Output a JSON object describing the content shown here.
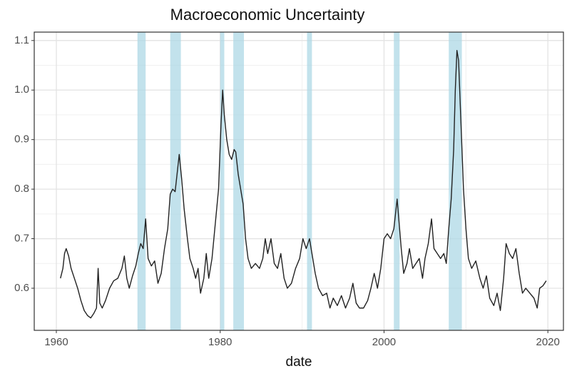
{
  "chart_data": {
    "type": "line",
    "title": "Macroeconomic Uncertainty",
    "x_label": "date",
    "x": [
      1960.5,
      1960.8,
      1961.0,
      1961.2,
      1961.5,
      1961.8,
      1962.2,
      1962.6,
      1963.0,
      1963.4,
      1963.8,
      1964.2,
      1964.6,
      1964.9,
      1965.1,
      1965.3,
      1965.6,
      1966.0,
      1966.5,
      1967.0,
      1967.5,
      1968.0,
      1968.3,
      1968.6,
      1968.9,
      1969.3,
      1969.7,
      1970.0,
      1970.3,
      1970.6,
      1970.9,
      1971.2,
      1971.6,
      1972.0,
      1972.4,
      1972.8,
      1973.2,
      1973.6,
      1973.9,
      1974.2,
      1974.5,
      1974.8,
      1975.0,
      1975.3,
      1975.6,
      1976.0,
      1976.3,
      1976.7,
      1977.0,
      1977.3,
      1977.6,
      1978.0,
      1978.3,
      1978.6,
      1979.0,
      1979.4,
      1979.8,
      1980.1,
      1980.3,
      1980.5,
      1980.8,
      1981.1,
      1981.4,
      1981.7,
      1981.9,
      1982.2,
      1982.5,
      1982.8,
      1983.1,
      1983.4,
      1983.8,
      1984.3,
      1984.8,
      1985.2,
      1985.5,
      1985.8,
      1986.2,
      1986.6,
      1987.0,
      1987.4,
      1987.8,
      1988.2,
      1988.7,
      1989.2,
      1989.7,
      1990.1,
      1990.5,
      1990.9,
      1991.2,
      1991.6,
      1992.0,
      1992.5,
      1993.0,
      1993.4,
      1993.8,
      1994.3,
      1994.8,
      1995.3,
      1995.8,
      1996.2,
      1996.6,
      1997.0,
      1997.5,
      1998.0,
      1998.4,
      1998.8,
      1999.2,
      1999.6,
      2000.0,
      2000.4,
      2000.8,
      2001.2,
      2001.6,
      2001.8,
      2002.1,
      2002.4,
      2002.8,
      2003.1,
      2003.5,
      2003.9,
      2004.3,
      2004.7,
      2005.0,
      2005.4,
      2005.8,
      2006.1,
      2006.5,
      2006.9,
      2007.3,
      2007.6,
      2007.9,
      2008.2,
      2008.5,
      2008.7,
      2008.9,
      2009.1,
      2009.4,
      2009.7,
      2010.0,
      2010.3,
      2010.7,
      2011.2,
      2011.7,
      2012.1,
      2012.5,
      2012.9,
      2013.4,
      2013.8,
      2014.2,
      2014.6,
      2014.9,
      2015.3,
      2015.7,
      2016.1,
      2016.5,
      2016.9,
      2017.3,
      2017.8,
      2018.3,
      2018.7,
      2019.0,
      2019.4,
      2019.8
    ],
    "values": [
      0.62,
      0.64,
      0.67,
      0.68,
      0.665,
      0.64,
      0.62,
      0.6,
      0.575,
      0.555,
      0.545,
      0.54,
      0.55,
      0.56,
      0.64,
      0.57,
      0.56,
      0.575,
      0.6,
      0.615,
      0.62,
      0.64,
      0.665,
      0.62,
      0.6,
      0.625,
      0.645,
      0.67,
      0.69,
      0.68,
      0.74,
      0.66,
      0.645,
      0.655,
      0.61,
      0.63,
      0.68,
      0.72,
      0.79,
      0.8,
      0.795,
      0.84,
      0.87,
      0.82,
      0.76,
      0.7,
      0.66,
      0.64,
      0.62,
      0.64,
      0.59,
      0.62,
      0.67,
      0.62,
      0.66,
      0.73,
      0.8,
      0.93,
      1.0,
      0.95,
      0.9,
      0.87,
      0.86,
      0.88,
      0.875,
      0.83,
      0.8,
      0.77,
      0.7,
      0.66,
      0.64,
      0.65,
      0.64,
      0.66,
      0.7,
      0.67,
      0.7,
      0.65,
      0.64,
      0.67,
      0.62,
      0.6,
      0.61,
      0.64,
      0.66,
      0.7,
      0.68,
      0.7,
      0.67,
      0.63,
      0.6,
      0.585,
      0.59,
      0.56,
      0.58,
      0.565,
      0.585,
      0.56,
      0.58,
      0.61,
      0.57,
      0.56,
      0.56,
      0.575,
      0.6,
      0.63,
      0.6,
      0.64,
      0.7,
      0.71,
      0.7,
      0.72,
      0.78,
      0.74,
      0.68,
      0.63,
      0.65,
      0.68,
      0.64,
      0.65,
      0.66,
      0.62,
      0.66,
      0.69,
      0.74,
      0.68,
      0.67,
      0.66,
      0.67,
      0.65,
      0.72,
      0.78,
      0.88,
      1.0,
      1.08,
      1.06,
      0.93,
      0.8,
      0.72,
      0.66,
      0.64,
      0.655,
      0.62,
      0.6,
      0.625,
      0.58,
      0.565,
      0.59,
      0.555,
      0.62,
      0.69,
      0.67,
      0.66,
      0.68,
      0.63,
      0.59,
      0.6,
      0.59,
      0.58,
      0.56,
      0.6,
      0.605,
      0.615
    ],
    "color": "#222222",
    "shaded_periods": [
      {
        "start": 1969.9,
        "end": 1970.9
      },
      {
        "start": 1973.9,
        "end": 1975.2
      },
      {
        "start": 1980.0,
        "end": 1980.5
      },
      {
        "start": 1981.6,
        "end": 1982.9
      },
      {
        "start": 1990.6,
        "end": 1991.2
      },
      {
        "start": 2001.2,
        "end": 2001.9
      },
      {
        "start": 2007.9,
        "end": 2009.5
      }
    ],
    "shade_color": "#add8e6",
    "xlim": [
      1957.3,
      2021.9
    ],
    "xticks": [
      1960,
      1980,
      2000,
      2020
    ],
    "ylim": [
      0.515,
      1.117
    ],
    "yticks": [
      0.6,
      0.7,
      0.8,
      0.9,
      {
        "value": 1,
        "label": "1.0"
      },
      1.1
    ],
    "grid": true
  }
}
